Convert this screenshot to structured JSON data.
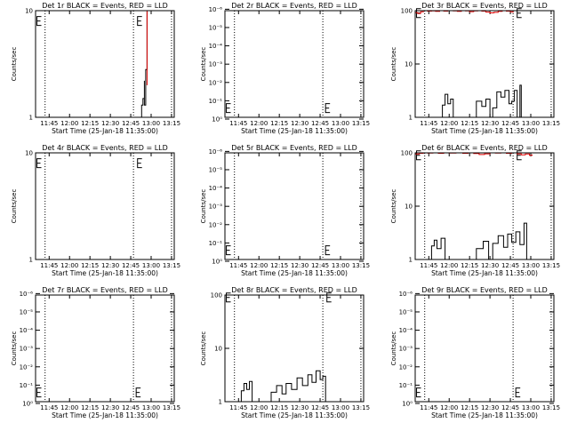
{
  "chart_data": [
    {
      "type": "line",
      "title": "Det 1r BLACK = Events, RED = LLD",
      "xlabel": "Start Time (25-Jan-18 11:35:00)",
      "ylabel": "Counts/sec",
      "yscale": "log",
      "ylim": [
        1,
        10
      ],
      "yticks": [
        {
          "v": 1,
          "label": "1"
        },
        {
          "v": 10,
          "label": "10"
        }
      ],
      "xlim": [
        "11:35",
        "13:17"
      ],
      "xticks": [
        "11:45",
        "12:00",
        "12:15",
        "12:30",
        "12:45",
        "13:00",
        "13:15"
      ],
      "markers": [
        "11:42",
        "12:47",
        "13:15"
      ],
      "e_marks": [
        {
          "x": "11:36",
          "y": 8
        },
        {
          "x": "12:50",
          "y": 8
        }
      ],
      "series": [
        {
          "color": "#000000",
          "values": [
            [
              "12:53",
              1.0
            ],
            [
              "12:53",
              1.3
            ],
            [
              "12:54",
              1.5
            ],
            [
              "12:55",
              2.2
            ],
            [
              "12:55",
              1.3
            ],
            [
              "12:56",
              2.0
            ],
            [
              "12:56",
              2.8
            ],
            [
              "12:57",
              9.8
            ]
          ]
        },
        {
          "color": "#dd0000",
          "values": [
            [
              "12:57",
              2.0
            ],
            [
              "12:57",
              10.0
            ],
            [
              "12:57",
              10.0
            ]
          ]
        }
      ]
    },
    {
      "type": "line",
      "title": "Det 2r BLACK = Events, RED = LLD",
      "xlabel": "Start Time (25-Jan-18 11:35:00)",
      "ylabel": "Counts/sec",
      "yscale": "log",
      "ylim": [
        0.8,
        1.2e-06
      ],
      "yticks": [
        {
          "v": 1,
          "label": "10⁰"
        },
        {
          "v": 0.1,
          "label": "10⁻¹"
        },
        {
          "v": 0.01,
          "label": "10⁻²"
        },
        {
          "v": 0.001,
          "label": "10⁻³"
        },
        {
          "v": 0.0001,
          "label": "10⁻⁴"
        },
        {
          "v": 1e-05,
          "label": "10⁻⁵"
        },
        {
          "v": 1e-06,
          "label": "10⁻⁶"
        }
      ],
      "xlim": [
        "11:35",
        "13:17"
      ],
      "xticks": [
        "11:45",
        "12:00",
        "12:15",
        "12:30",
        "12:45",
        "13:00",
        "13:15"
      ],
      "markers": [
        "11:42",
        "12:47",
        "13:15"
      ],
      "e_marks": [
        {
          "x": "11:36",
          "y": 0.25
        },
        {
          "x": "12:49",
          "y": 0.25
        }
      ],
      "series": []
    },
    {
      "type": "line",
      "title": "Det 3r BLACK = Events, RED = LLD",
      "xlabel": "Start Time (25-Jan-18 11:35:00)",
      "ylabel": "Counts/sec",
      "yscale": "log",
      "ylim": [
        1,
        100
      ],
      "yticks": [
        {
          "v": 1,
          "label": "1"
        },
        {
          "v": 10,
          "label": "10"
        },
        {
          "v": 100,
          "label": "100"
        }
      ],
      "xlim": [
        "11:35",
        "13:17"
      ],
      "xticks": [
        "11:45",
        "12:00",
        "12:15",
        "12:30",
        "12:45",
        "13:00",
        "13:15"
      ],
      "markers": [
        "11:42",
        "12:47",
        "13:15"
      ],
      "e_marks": [
        {
          "x": "11:36",
          "y": 90
        },
        {
          "x": "12:50",
          "y": 90
        }
      ],
      "series": [
        {
          "color": "#dd0000",
          "values": [
            [
              "11:35",
              92
            ],
            [
              "11:37",
              88
            ],
            [
              "11:39",
              95
            ],
            [
              "11:41",
              100
            ],
            [
              "11:44",
              98
            ],
            [
              "11:47",
              99
            ],
            [
              "11:50",
              97
            ],
            [
              "11:53",
              100
            ],
            [
              "11:56",
              98
            ],
            [
              "11:59",
              100
            ],
            [
              "12:03",
              99
            ],
            [
              "12:06",
              97
            ],
            [
              "12:09",
              100
            ],
            [
              "12:12",
              99
            ],
            [
              "12:15",
              96
            ],
            [
              "12:18",
              99
            ],
            [
              "12:21",
              100
            ],
            [
              "12:24",
              98
            ],
            [
              "12:27",
              94
            ],
            [
              "12:30",
              91
            ],
            [
              "12:33",
              93
            ],
            [
              "12:36",
              97
            ],
            [
              "12:39",
              100
            ],
            [
              "12:42",
              98
            ],
            [
              "12:45",
              95
            ],
            [
              "12:47",
              92
            ]
          ]
        },
        {
          "color": "#000000",
          "values": [
            [
              "11:53",
              1.0
            ],
            [
              "11:55",
              1.7
            ],
            [
              "11:57",
              2.7
            ],
            [
              "11:59",
              1.8
            ],
            [
              "12:01",
              2.2
            ],
            [
              "12:03",
              1.0
            ],
            [
              "12:17",
              1.0
            ],
            [
              "12:20",
              2.0
            ],
            [
              "12:24",
              1.6
            ],
            [
              "12:27",
              2.2
            ],
            [
              "12:30",
              1.0
            ],
            [
              "12:32",
              1.5
            ],
            [
              "12:35",
              3.0
            ],
            [
              "12:38",
              2.4
            ],
            [
              "12:41",
              3.2
            ],
            [
              "12:44",
              1.8
            ],
            [
              "12:46",
              2.0
            ],
            [
              "12:48",
              3.2
            ],
            [
              "12:50",
              1.0
            ],
            [
              "12:52",
              4.0
            ],
            [
              "12:53",
              1.0
            ]
          ]
        }
      ]
    },
    {
      "type": "line",
      "title": "Det 4r BLACK = Events, RED = LLD",
      "xlabel": "Start Time (25-Jan-18 11:35:00)",
      "ylabel": "Counts/sec",
      "yscale": "log",
      "ylim": [
        1,
        10
      ],
      "yticks": [
        {
          "v": 1,
          "label": "1"
        },
        {
          "v": 10,
          "label": "10"
        }
      ],
      "xlim": [
        "11:35",
        "13:17"
      ],
      "xticks": [
        "11:45",
        "12:00",
        "12:15",
        "12:30",
        "12:45",
        "13:00",
        "13:15"
      ],
      "markers": [
        "11:42",
        "12:47",
        "13:15"
      ],
      "e_marks": [
        {
          "x": "11:36",
          "y": 8
        },
        {
          "x": "12:50",
          "y": 8
        }
      ],
      "series": []
    },
    {
      "type": "line",
      "title": "Det 5r BLACK = Events, RED = LLD",
      "xlabel": "Start Time (25-Jan-18 11:35:00)",
      "ylabel": "Counts/sec",
      "yscale": "log",
      "ylim": [
        0.8,
        1.2e-06
      ],
      "yticks": [
        {
          "v": 1,
          "label": "10⁰"
        },
        {
          "v": 0.1,
          "label": "10⁻¹"
        },
        {
          "v": 0.01,
          "label": "10⁻²"
        },
        {
          "v": 0.001,
          "label": "10⁻³"
        },
        {
          "v": 0.0001,
          "label": "10⁻⁴"
        },
        {
          "v": 1e-05,
          "label": "10⁻⁵"
        },
        {
          "v": 1e-06,
          "label": "10⁻⁶"
        }
      ],
      "xlim": [
        "11:35",
        "13:17"
      ],
      "xticks": [
        "11:45",
        "12:00",
        "12:15",
        "12:30",
        "12:45",
        "13:00",
        "13:15"
      ],
      "markers": [
        "11:42",
        "12:47",
        "13:15"
      ],
      "e_marks": [
        {
          "x": "11:36",
          "y": 0.25
        },
        {
          "x": "12:49",
          "y": 0.25
        }
      ],
      "series": []
    },
    {
      "type": "line",
      "title": "Det 6r BLACK = Events, RED = LLD",
      "xlabel": "Start Time (25-Jan-18 11:35:00)",
      "ylabel": "Counts/sec",
      "yscale": "log",
      "ylim": [
        1,
        100
      ],
      "yticks": [
        {
          "v": 1,
          "label": "1"
        },
        {
          "v": 10,
          "label": "10"
        },
        {
          "v": 100,
          "label": "100"
        }
      ],
      "xlim": [
        "11:35",
        "13:17"
      ],
      "xticks": [
        "11:45",
        "12:00",
        "12:15",
        "12:30",
        "12:45",
        "13:00",
        "13:15"
      ],
      "markers": [
        "11:42",
        "12:47",
        "13:15"
      ],
      "e_marks": [
        {
          "x": "11:36",
          "y": 90
        },
        {
          "x": "12:50",
          "y": 90
        }
      ],
      "series": [
        {
          "color": "#dd0000",
          "values": [
            [
              "11:35",
              95
            ],
            [
              "11:38",
              98
            ],
            [
              "11:41",
              100
            ],
            [
              "11:44",
              99
            ],
            [
              "11:48",
              100
            ],
            [
              "11:52",
              98
            ],
            [
              "11:56",
              100
            ],
            [
              "12:00",
              99
            ],
            [
              "12:05",
              100
            ],
            [
              "12:10",
              98
            ],
            [
              "12:14",
              100
            ],
            [
              "12:18",
              97
            ],
            [
              "12:22",
              93
            ],
            [
              "12:26",
              96
            ],
            [
              "12:30",
              100
            ],
            [
              "12:34",
              99
            ],
            [
              "12:38",
              100
            ],
            [
              "12:42",
              98
            ],
            [
              "12:46",
              100
            ],
            [
              "12:50",
              96
            ],
            [
              "12:53",
              92
            ],
            [
              "12:56",
              95
            ],
            [
              "12:59",
              90
            ],
            [
              "13:01",
              93
            ]
          ]
        },
        {
          "color": "#000000",
          "values": [
            [
              "11:45",
              1.0
            ],
            [
              "11:47",
              1.8
            ],
            [
              "11:49",
              2.3
            ],
            [
              "11:51",
              1.6
            ],
            [
              "11:54",
              2.5
            ],
            [
              "11:57",
              1.0
            ],
            [
              "12:15",
              1.0
            ],
            [
              "12:20",
              1.6
            ],
            [
              "12:25",
              2.2
            ],
            [
              "12:29",
              1.0
            ],
            [
              "12:32",
              2.0
            ],
            [
              "12:36",
              2.8
            ],
            [
              "12:40",
              1.7
            ],
            [
              "12:43",
              3.0
            ],
            [
              "12:46",
              2.1
            ],
            [
              "12:49",
              3.3
            ],
            [
              "12:52",
              1.9
            ],
            [
              "12:55",
              4.8
            ],
            [
              "12:57",
              1.0
            ]
          ]
        }
      ]
    },
    {
      "type": "line",
      "title": "Det 7r BLACK = Events, RED = LLD",
      "xlabel": "Start Time (25-Jan-18 11:35:00)",
      "ylabel": "Counts/sec",
      "yscale": "log",
      "ylim": [
        0.8,
        1.2e-06
      ],
      "yticks": [
        {
          "v": 1,
          "label": "10⁰"
        },
        {
          "v": 0.1,
          "label": "10⁻¹"
        },
        {
          "v": 0.01,
          "label": "10⁻²"
        },
        {
          "v": 0.001,
          "label": "10⁻³"
        },
        {
          "v": 0.0001,
          "label": "10⁻⁴"
        },
        {
          "v": 1e-05,
          "label": "10⁻⁵"
        },
        {
          "v": 1e-06,
          "label": "10⁻⁶"
        }
      ],
      "xlim": [
        "11:35",
        "13:17"
      ],
      "xticks": [
        "11:45",
        "12:00",
        "12:15",
        "12:30",
        "12:45",
        "13:00",
        "13:15"
      ],
      "markers": [
        "11:42",
        "12:47",
        "13:15"
      ],
      "e_marks": [
        {
          "x": "11:36",
          "y": 0.25
        },
        {
          "x": "12:49",
          "y": 0.25
        }
      ],
      "series": []
    },
    {
      "type": "line",
      "title": "Det 8r BLACK = Events, RED = LLD",
      "xlabel": "Start Time (25-Jan-18 11:35:00)",
      "ylabel": "Counts/sec",
      "yscale": "log",
      "ylim": [
        1,
        100
      ],
      "yticks": [
        {
          "v": 1,
          "label": "1"
        },
        {
          "v": 10,
          "label": "10"
        },
        {
          "v": 100,
          "label": "100"
        }
      ],
      "xlim": [
        "11:35",
        "13:17"
      ],
      "xticks": [
        "11:45",
        "12:00",
        "12:15",
        "12:30",
        "12:45",
        "13:00",
        "13:15"
      ],
      "markers": [
        "11:42",
        "12:47",
        "13:15"
      ],
      "e_marks": [
        {
          "x": "11:36",
          "y": 90
        },
        {
          "x": "12:50",
          "y": 90
        }
      ],
      "series": [
        {
          "color": "#000000",
          "values": [
            [
              "11:45",
              1.0
            ],
            [
              "11:47",
              1.6
            ],
            [
              "11:49",
              2.2
            ],
            [
              "11:51",
              1.7
            ],
            [
              "11:53",
              2.4
            ],
            [
              "11:55",
              1.0
            ],
            [
              "12:06",
              1.0
            ],
            [
              "12:09",
              1.5
            ],
            [
              "12:13",
              2.0
            ],
            [
              "12:17",
              1.4
            ],
            [
              "12:20",
              2.2
            ],
            [
              "12:24",
              1.7
            ],
            [
              "12:28",
              2.8
            ],
            [
              "12:32",
              2.0
            ],
            [
              "12:36",
              3.2
            ],
            [
              "12:39",
              2.3
            ],
            [
              "12:42",
              3.8
            ],
            [
              "12:45",
              2.6
            ],
            [
              "12:47",
              3.0
            ],
            [
              "12:49",
              1.0
            ]
          ]
        }
      ]
    },
    {
      "type": "line",
      "title": "Det 9r BLACK = Events, RED = LLD",
      "xlabel": "Start Time (25-Jan-18 11:35:00)",
      "ylabel": "Counts/sec",
      "yscale": "log",
      "ylim": [
        0.8,
        1.2e-06
      ],
      "yticks": [
        {
          "v": 1,
          "label": "10⁰"
        },
        {
          "v": 0.1,
          "label": "10⁻¹"
        },
        {
          "v": 0.01,
          "label": "10⁻²"
        },
        {
          "v": 0.001,
          "label": "10⁻³"
        },
        {
          "v": 0.0001,
          "label": "10⁻⁴"
        },
        {
          "v": 1e-05,
          "label": "10⁻⁵"
        },
        {
          "v": 1e-06,
          "label": "10⁻⁶"
        }
      ],
      "xlim": [
        "11:35",
        "13:17"
      ],
      "xticks": [
        "11:45",
        "12:00",
        "12:15",
        "12:30",
        "12:45",
        "13:00",
        "13:15"
      ],
      "markers": [
        "11:42",
        "12:47",
        "13:15"
      ],
      "e_marks": [
        {
          "x": "11:36",
          "y": 0.25
        },
        {
          "x": "12:49",
          "y": 0.25
        }
      ],
      "series": []
    }
  ]
}
